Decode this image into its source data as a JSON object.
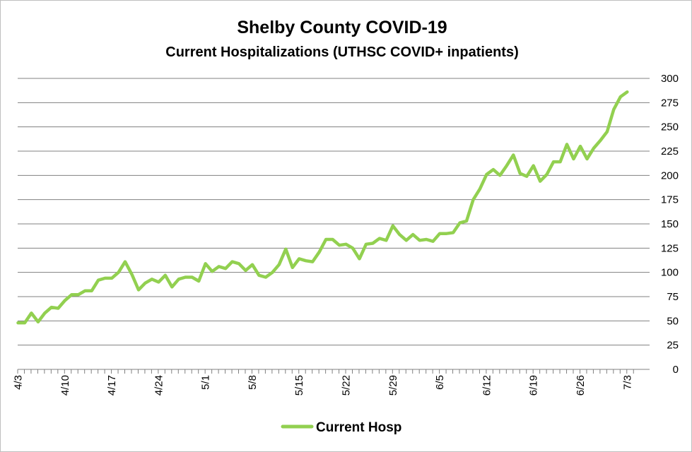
{
  "chart_data": {
    "type": "line",
    "title": "Shelby County COVID-19",
    "subtitle": "Current Hospitalizations (UTHSC COVID+ inpatients)",
    "x_tick_labels": [
      "4/3",
      "4/10",
      "4/17",
      "4/24",
      "5/1",
      "5/8",
      "5/15",
      "5/22",
      "5/29",
      "6/5",
      "6/12",
      "6/19",
      "6/26",
      "7/3"
    ],
    "ylim": [
      0,
      300
    ],
    "y_ticks": [
      0,
      25,
      50,
      75,
      100,
      125,
      150,
      175,
      200,
      225,
      250,
      275,
      300
    ],
    "y_axis_side": "right",
    "grid": true,
    "legend_position": "bottom",
    "series": [
      {
        "name": "Current Hosp",
        "color": "#92d050",
        "start_date": "4/3",
        "values": [
          48,
          48,
          58,
          49,
          58,
          64,
          63,
          71,
          77,
          77,
          81,
          81,
          92,
          94,
          94,
          100,
          111,
          98,
          82,
          89,
          93,
          90,
          97,
          85,
          93,
          95,
          95,
          91,
          109,
          101,
          106,
          104,
          111,
          109,
          102,
          108,
          97,
          95,
          100,
          108,
          124,
          105,
          114,
          112,
          111,
          121,
          134,
          134,
          128,
          129,
          125,
          114,
          129,
          130,
          135,
          133,
          148,
          139,
          133,
          139,
          133,
          134,
          132,
          140,
          140,
          141,
          151,
          153,
          175,
          186,
          201,
          206,
          200,
          210,
          221,
          202,
          199,
          210,
          194,
          201,
          214,
          214,
          232,
          217,
          230,
          217,
          228,
          236,
          245,
          268,
          281,
          286
        ]
      }
    ]
  }
}
